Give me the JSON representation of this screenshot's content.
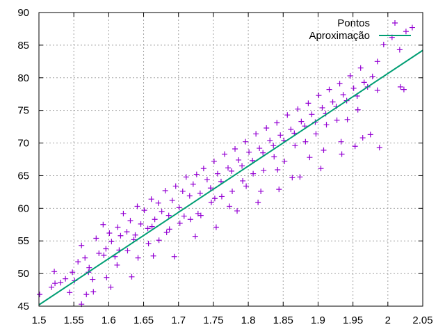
{
  "chart_data": {
    "type": "scatter",
    "title": "",
    "xlabel": "",
    "ylabel": "",
    "xlim": [
      1.5,
      2.05
    ],
    "ylim": [
      45,
      90
    ],
    "x_ticks": [
      1.5,
      1.55,
      1.6,
      1.65,
      1.7,
      1.75,
      1.8,
      1.85,
      1.9,
      1.95,
      2,
      2.05
    ],
    "x_tick_labels": [
      "1.5",
      "1.55",
      "1.6",
      "1.65",
      "1.7",
      "1.75",
      "1.8",
      "1.85",
      "1.9",
      "1.95",
      "2",
      "2.05"
    ],
    "y_ticks": [
      45,
      50,
      55,
      60,
      65,
      70,
      75,
      80,
      85,
      90
    ],
    "y_tick_labels": [
      "45",
      "50",
      "55",
      "60",
      "65",
      "70",
      "75",
      "80",
      "85",
      "90"
    ],
    "grid": true,
    "legend_position": "top-right",
    "series": [
      {
        "name": "Pontos",
        "kind": "points",
        "marker": "plus",
        "color": "#9400d3",
        "x": [
          1.501,
          1.518,
          1.522,
          1.531,
          1.538,
          1.544,
          1.551,
          1.556,
          1.561,
          1.566,
          1.571,
          1.577,
          1.582,
          1.586,
          1.592,
          1.596,
          1.601,
          1.604,
          1.609,
          1.613,
          1.617,
          1.621,
          1.626,
          1.631,
          1.636,
          1.641,
          1.646,
          1.651,
          1.656,
          1.661,
          1.666,
          1.671,
          1.676,
          1.681,
          1.686,
          1.691,
          1.696,
          1.701,
          1.706,
          1.711,
          1.716,
          1.721,
          1.726,
          1.731,
          1.736,
          1.741,
          1.746,
          1.751,
          1.756,
          1.761,
          1.766,
          1.771,
          1.776,
          1.781,
          1.786,
          1.791,
          1.796,
          1.801,
          1.806,
          1.811,
          1.816,
          1.821,
          1.826,
          1.831,
          1.836,
          1.841,
          1.846,
          1.851,
          1.856,
          1.861,
          1.866,
          1.871,
          1.876,
          1.881,
          1.886,
          1.891,
          1.896,
          1.901,
          1.906,
          1.911,
          1.916,
          1.921,
          1.926,
          1.931,
          1.936,
          1.941,
          1.946,
          1.951,
          1.956,
          1.961,
          1.966,
          1.971,
          1.978,
          1.985,
          1.994,
          2.006,
          2.017,
          2.026,
          2.035,
          1.561,
          1.578,
          1.597,
          1.612,
          1.627,
          1.642,
          1.657,
          1.672,
          1.687,
          1.702,
          1.717,
          1.732,
          1.747,
          1.762,
          1.777,
          1.792,
          1.807,
          1.822,
          1.837,
          1.852,
          1.867,
          1.882,
          1.897,
          1.912,
          1.927,
          1.942,
          1.957,
          1.985,
          1.523,
          1.548,
          1.572,
          1.593,
          1.615,
          1.638,
          1.662,
          1.683,
          1.708,
          1.728,
          1.752,
          1.773,
          1.797,
          1.818,
          1.842,
          1.863,
          1.888,
          1.908,
          1.933,
          1.953,
          1.975,
          2.018,
          1.568,
          1.603,
          1.633,
          1.664,
          1.694,
          1.724,
          1.754,
          1.784,
          1.814,
          1.844,
          1.874,
          1.904,
          1.934,
          1.964,
          1.988,
          2.023
        ],
        "y": [
          46.8,
          47.9,
          50.3,
          48.6,
          49.2,
          47.1,
          48.9,
          51.8,
          54.3,
          52.4,
          50.2,
          49.1,
          55.4,
          53.1,
          57.5,
          53.8,
          56.2,
          54.9,
          52.6,
          57.1,
          55.8,
          59.2,
          56.4,
          58.1,
          55.2,
          60.3,
          57.6,
          59.7,
          56.9,
          61.4,
          58.3,
          60.8,
          59.5,
          62.7,
          58.9,
          61.2,
          63.4,
          60.1,
          62.6,
          64.8,
          61.9,
          63.7,
          65.2,
          62.3,
          66.1,
          64.4,
          63.1,
          67.2,
          65.3,
          64.1,
          68.3,
          66.2,
          65.7,
          69.1,
          67.4,
          66.5,
          70.2,
          68.6,
          67.3,
          71.4,
          69.2,
          68.5,
          72.3,
          70.4,
          69.6,
          73.1,
          71.2,
          70.4,
          74.3,
          72.1,
          71.5,
          75.2,
          73.3,
          72.6,
          76.1,
          74.4,
          73.2,
          77.3,
          75.4,
          74.5,
          78.2,
          76.3,
          75.6,
          79.1,
          77.4,
          76.5,
          80.3,
          78.4,
          77.2,
          81.5,
          79.3,
          78.6,
          80.2,
          82.5,
          85.1,
          86.2,
          84.3,
          87.1,
          87.7,
          45.3,
          47.2,
          49.4,
          51.3,
          53.5,
          52.4,
          54.6,
          55.1,
          56.8,
          57.7,
          58.3,
          58.9,
          60.9,
          61.8,
          62.6,
          64.2,
          65.3,
          65.8,
          67.9,
          67.2,
          69.6,
          70.2,
          71.4,
          72.8,
          73.5,
          73.6,
          75.1,
          78.1,
          48.5,
          50.2,
          50.9,
          52.8,
          53.6,
          55.9,
          57.2,
          56.3,
          58.8,
          59.2,
          61.5,
          60.3,
          63.4,
          62.6,
          65.9,
          64.7,
          67.8,
          68.9,
          70.2,
          69.5,
          71.3,
          78.6,
          46.8,
          47.9,
          49.5,
          52.7,
          52.6,
          55.7,
          57.1,
          59.6,
          60.9,
          62.9,
          64.8,
          66.1,
          68.3,
          70.8,
          69.3,
          78.2
        ]
      },
      {
        "name": "Aproximação",
        "kind": "line",
        "color": "#009e73",
        "x": [
          1.5,
          2.05
        ],
        "y": [
          45.2,
          84.2
        ]
      }
    ]
  }
}
